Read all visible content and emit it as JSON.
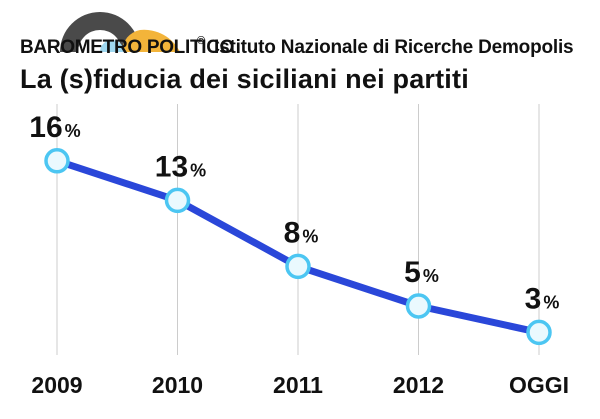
{
  "header": {
    "barometro": "BAROMETRO POLITICO",
    "registered_mark": "®",
    "istituto": "Istituto Nazionale di Ricerche Demopolis"
  },
  "chart_data": {
    "type": "line",
    "title": "La (s)fiducia dei siciliani nei partiti",
    "categories": [
      "2009",
      "2010",
      "2011",
      "2012",
      "OGGI"
    ],
    "series": [
      {
        "values": [
          16,
          13,
          8,
          5,
          3
        ]
      }
    ],
    "value_labels": [
      "16",
      "13",
      "8",
      "5",
      "3"
    ],
    "unit": "%",
    "ylim": [
      0,
      20
    ],
    "grid": "vertical",
    "colors": {
      "line": "#2a47d9",
      "marker_fill": "#eaf9fe",
      "marker_stroke": "#4cc6f2",
      "grid": "#cccccc",
      "logo_dark": "#4a4a4a",
      "logo_accent": "#f3b43a",
      "logo_light": "#9fd8f0"
    }
  }
}
